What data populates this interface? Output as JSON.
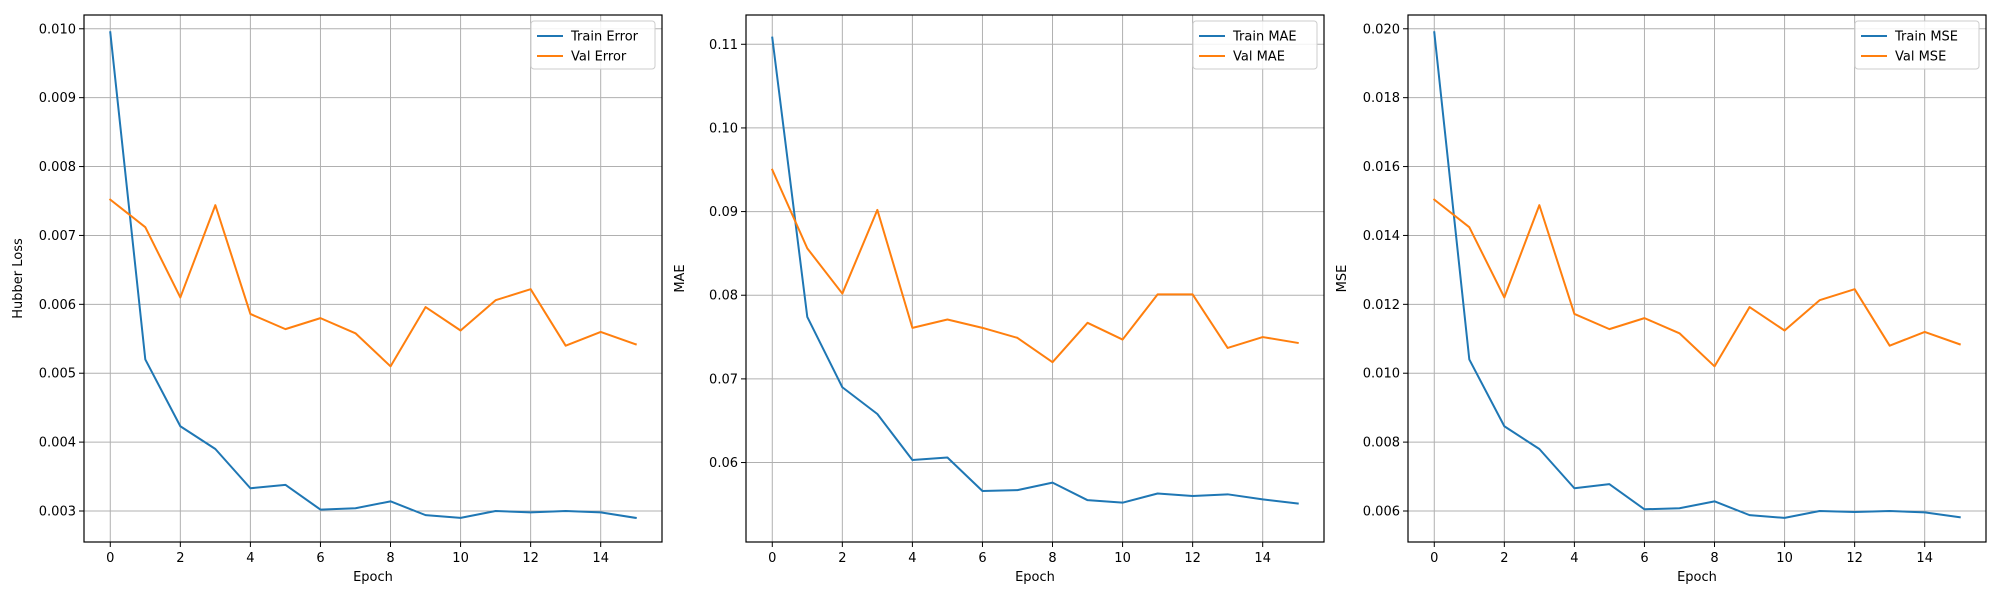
{
  "chart_data": [
    {
      "type": "line",
      "title": "",
      "xlabel": "Epoch",
      "ylabel": "Hubber Loss",
      "xlim": [
        -0.75,
        15.75
      ],
      "ylim": [
        0.00255,
        0.0102
      ],
      "xticks": [
        0,
        2,
        4,
        6,
        8,
        10,
        12,
        14
      ],
      "yticks": [
        0.003,
        0.004,
        0.005,
        0.006,
        0.007,
        0.008,
        0.009,
        0.01
      ],
      "tick_decimals": 3,
      "grid": true,
      "legend": "top-right",
      "x": [
        0,
        1,
        2,
        3,
        4,
        5,
        6,
        7,
        8,
        9,
        10,
        11,
        12,
        13,
        14,
        15
      ],
      "series": [
        {
          "name": "Train Error",
          "color": "#1f77b4",
          "values": [
            0.00995,
            0.0052,
            0.00423,
            0.0039,
            0.00333,
            0.00338,
            0.00302,
            0.00304,
            0.00314,
            0.00294,
            0.0029,
            0.003,
            0.00298,
            0.003,
            0.00298,
            0.0029
          ]
        },
        {
          "name": "Val Error",
          "color": "#ff7f0e",
          "values": [
            0.00752,
            0.00712,
            0.0061,
            0.00744,
            0.00586,
            0.00564,
            0.0058,
            0.00558,
            0.0051,
            0.00596,
            0.00562,
            0.00606,
            0.00622,
            0.0054,
            0.0056,
            0.00542
          ]
        }
      ]
    },
    {
      "type": "line",
      "title": "",
      "xlabel": "Epoch",
      "ylabel": "MAE",
      "xlim": [
        -0.75,
        15.75
      ],
      "ylim": [
        0.0505,
        0.1135
      ],
      "xticks": [
        0,
        2,
        4,
        6,
        8,
        10,
        12,
        14
      ],
      "yticks": [
        0.06,
        0.07,
        0.08,
        0.09,
        0.1,
        0.11
      ],
      "tick_decimals": 2,
      "grid": true,
      "legend": "top-right",
      "x": [
        0,
        1,
        2,
        3,
        4,
        5,
        6,
        7,
        8,
        9,
        10,
        11,
        12,
        13,
        14,
        15
      ],
      "series": [
        {
          "name": "Train MAE",
          "color": "#1f77b4",
          "values": [
            0.1108,
            0.0774,
            0.069,
            0.0658,
            0.0603,
            0.0606,
            0.0566,
            0.0567,
            0.0576,
            0.0555,
            0.0552,
            0.0563,
            0.056,
            0.0562,
            0.0556,
            0.0551
          ]
        },
        {
          "name": "Val MAE",
          "color": "#ff7f0e",
          "values": [
            0.095,
            0.0856,
            0.0802,
            0.0902,
            0.0761,
            0.0771,
            0.0761,
            0.0749,
            0.072,
            0.0767,
            0.0747,
            0.0801,
            0.0801,
            0.0737,
            0.075,
            0.0743
          ]
        }
      ]
    },
    {
      "type": "line",
      "title": "",
      "xlabel": "Epoch",
      "ylabel": "MSE",
      "xlim": [
        -0.75,
        15.75
      ],
      "ylim": [
        0.0051,
        0.0204
      ],
      "xticks": [
        0,
        2,
        4,
        6,
        8,
        10,
        12,
        14
      ],
      "yticks": [
        0.006,
        0.008,
        0.01,
        0.012,
        0.014,
        0.016,
        0.018,
        0.02
      ],
      "tick_decimals": 3,
      "grid": true,
      "legend": "top-right",
      "x": [
        0,
        1,
        2,
        3,
        4,
        5,
        6,
        7,
        8,
        9,
        10,
        11,
        12,
        13,
        14,
        15
      ],
      "series": [
        {
          "name": "Train MSE",
          "color": "#1f77b4",
          "values": [
            0.0199,
            0.0104,
            0.00846,
            0.0078,
            0.00666,
            0.00678,
            0.00605,
            0.00608,
            0.00628,
            0.00588,
            0.0058,
            0.006,
            0.00597,
            0.006,
            0.00596,
            0.00582
          ]
        },
        {
          "name": "Val MSE",
          "color": "#ff7f0e",
          "values": [
            0.01504,
            0.01424,
            0.0122,
            0.01488,
            0.01172,
            0.01128,
            0.0116,
            0.01116,
            0.0102,
            0.01192,
            0.01124,
            0.01212,
            0.01244,
            0.0108,
            0.0112,
            0.01084
          ]
        }
      ]
    }
  ]
}
